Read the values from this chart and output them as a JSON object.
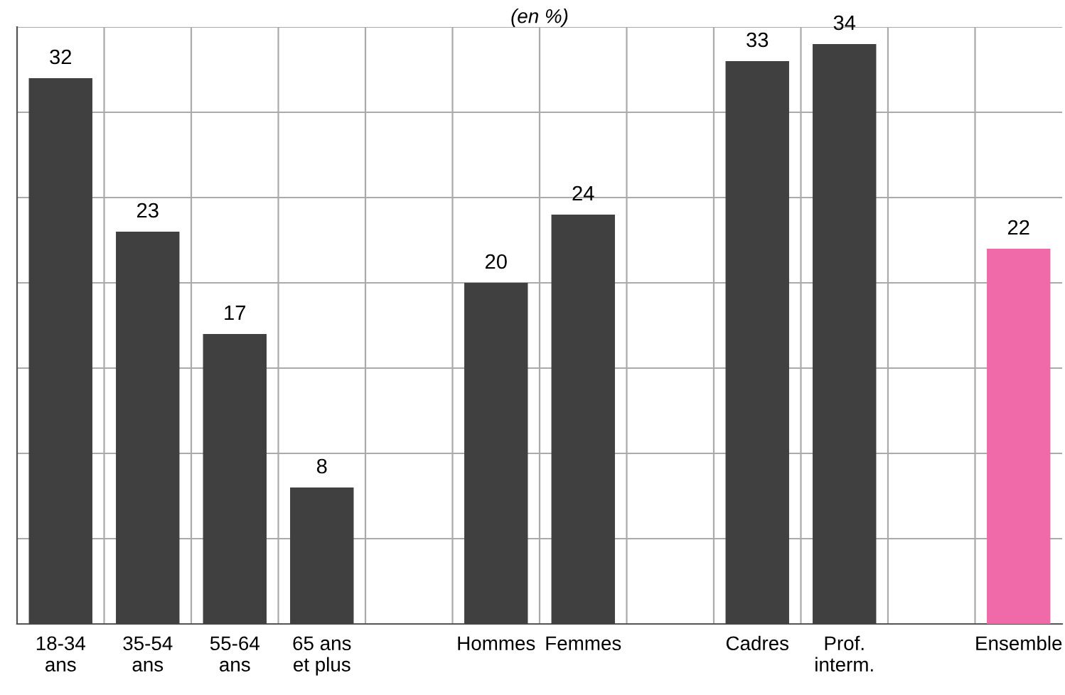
{
  "chart_data": {
    "type": "bar",
    "title": "(en %)",
    "categories": [
      "18-34\nans",
      "35-54\nans",
      "55-64\nans",
      "65 ans\net plus",
      null,
      "Hommes",
      "Femmes",
      null,
      "Cadres",
      "Prof.\ninterm.",
      null,
      "Ensemble"
    ],
    "values": [
      32,
      23,
      17,
      8,
      null,
      20,
      24,
      null,
      33,
      34,
      null,
      22
    ],
    "colors": [
      "#404040",
      "#404040",
      "#404040",
      "#404040",
      "#404040",
      "#404040",
      "#404040",
      "#404040",
      "#404040",
      "#404040",
      "#404040",
      "#f06aaa"
    ],
    "ylim": [
      0,
      35
    ],
    "yticks": [
      {
        "value": 0,
        "label": null
      },
      {
        "value": 5,
        "label": null
      },
      {
        "value": 10,
        "label": null
      },
      {
        "value": 15,
        "label": null
      },
      {
        "value": 20,
        "label": null
      },
      {
        "value": 25,
        "label": null
      },
      {
        "value": 30,
        "label": null
      },
      {
        "value": 35,
        "label": null
      }
    ],
    "grid": true,
    "data_labels": true,
    "tick_labels": "x"
  }
}
